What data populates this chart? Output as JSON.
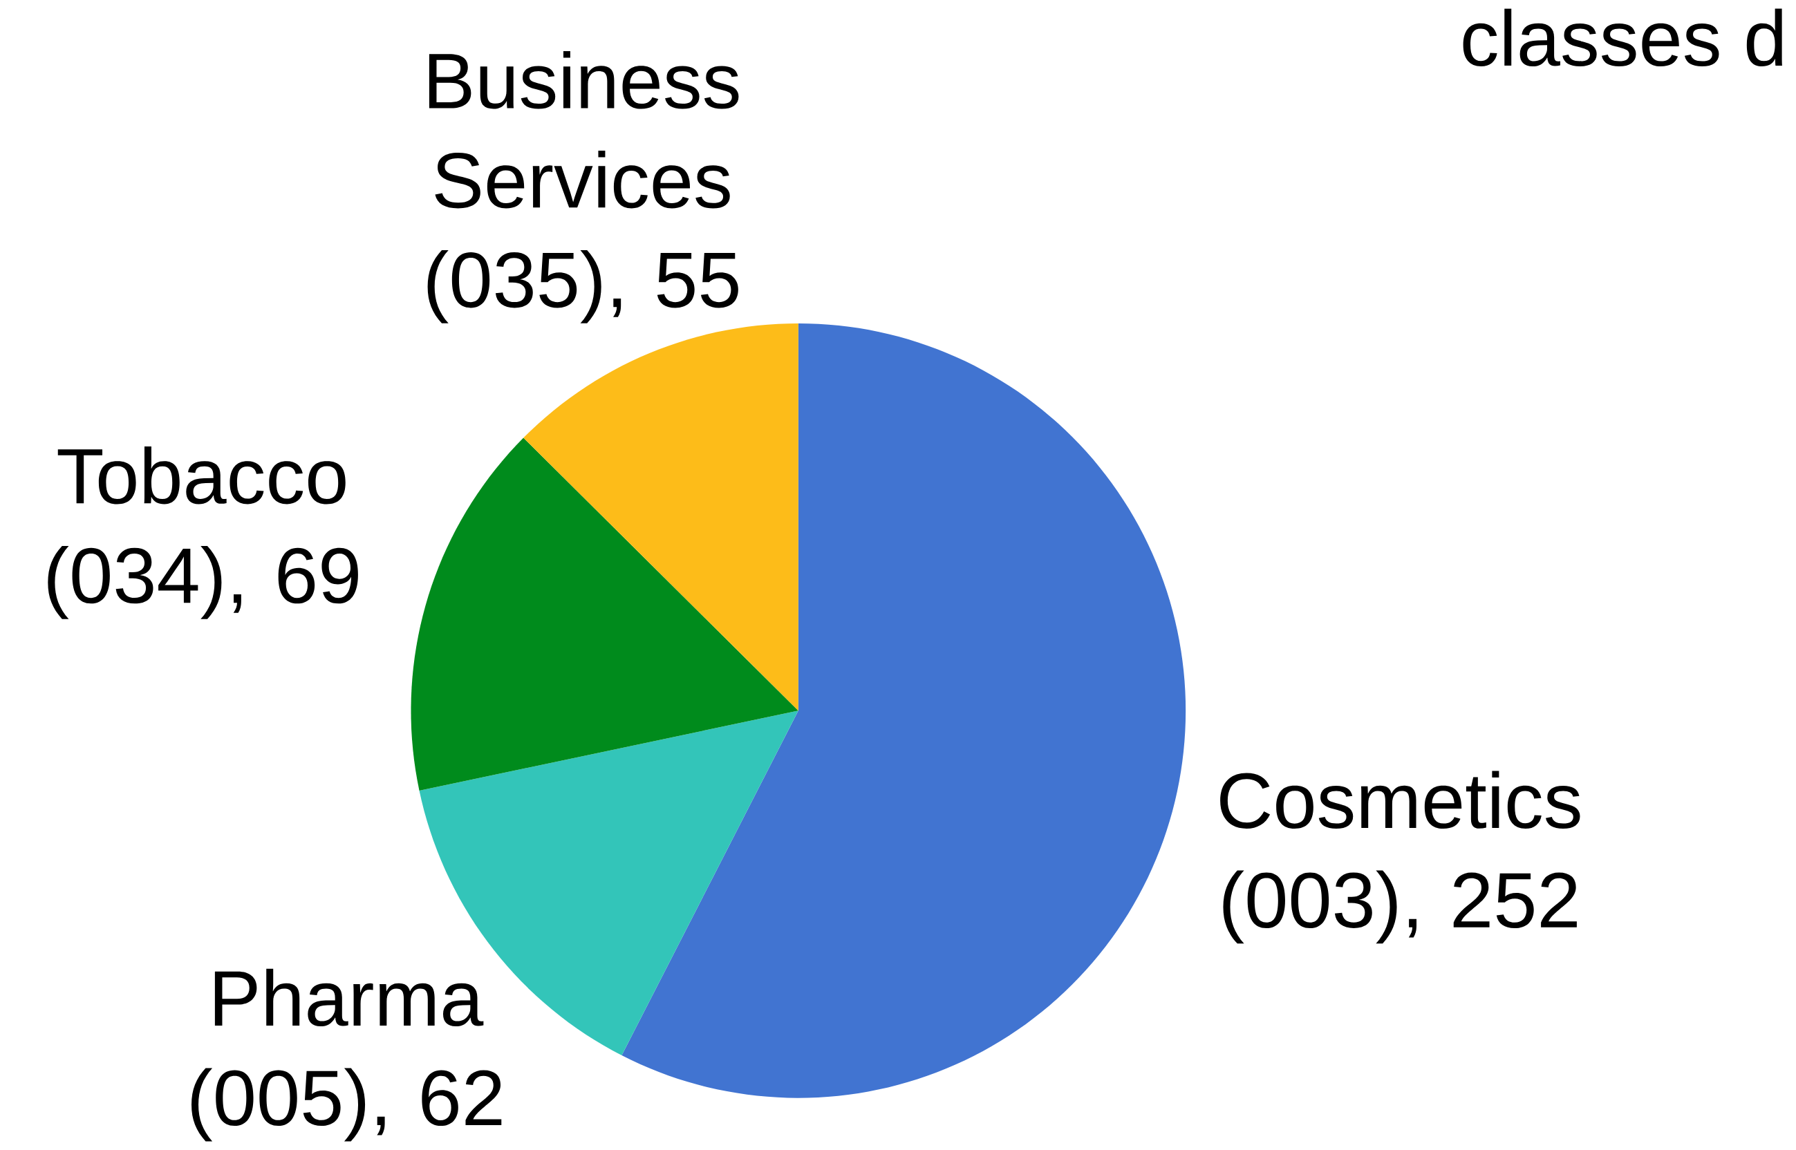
{
  "chart_data": {
    "type": "pie",
    "title": "classes d",
    "categories": [
      "Cosmetics (003)",
      "Pharma (005)",
      "Tobacco (034)",
      "Business Services (035)"
    ],
    "values": [
      252,
      62,
      69,
      55
    ],
    "value_labels": [
      ", 252",
      ", 62",
      ", 69",
      ", 55"
    ],
    "colors": [
      "#4174d1",
      "#33c5b9",
      "#008b1c",
      "#fdbc19"
    ]
  }
}
